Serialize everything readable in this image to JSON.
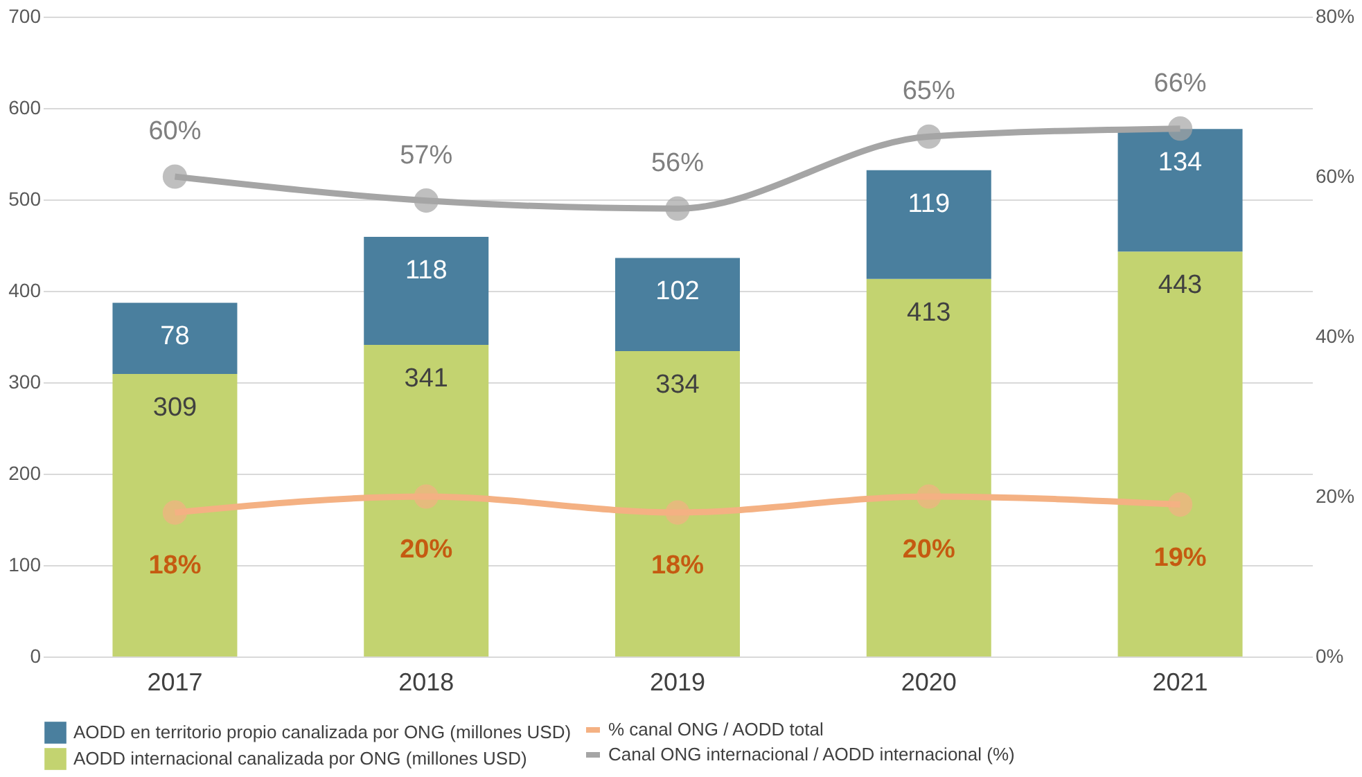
{
  "chart_data": {
    "type": "bar",
    "stacked": true,
    "categories": [
      "2017",
      "2018",
      "2019",
      "2020",
      "2021"
    ],
    "series": [
      {
        "name": "AODD internacional canalizada por ONG (millones USD)",
        "color": "#c3d370",
        "values": [
          309,
          341,
          334,
          413,
          443
        ]
      },
      {
        "name": "AODD en territorio propio canalizada por ONG (millones USD)",
        "color": "#4a7f9e",
        "values": [
          78,
          118,
          102,
          119,
          134
        ]
      },
      {
        "name": "% canal ONG / AODD total",
        "type": "line",
        "axis": "y2",
        "color": "#f4b183",
        "values": [
          18,
          20,
          18,
          20,
          19
        ],
        "value_labels": [
          "18%",
          "20%",
          "18%",
          "20%",
          "19%"
        ]
      },
      {
        "name": "Canal ONG internacional / AODD internacional (%)",
        "type": "line",
        "axis": "y2",
        "color": "#a5a5a5",
        "values": [
          60,
          57,
          56,
          65,
          66
        ],
        "value_labels": [
          "60%",
          "57%",
          "56%",
          "65%",
          "66%"
        ]
      }
    ],
    "ylim": [
      0,
      700
    ],
    "yticks": [
      0,
      100,
      200,
      300,
      400,
      500,
      600,
      700
    ],
    "y2lim": [
      0,
      80
    ],
    "y2ticks": [
      {
        "value": 0,
        "label": "0%"
      },
      {
        "value": 20,
        "label": "20%"
      },
      {
        "value": 40,
        "label": "40%"
      },
      {
        "value": 60,
        "label": "60%"
      },
      {
        "value": 80,
        "label": "80%"
      }
    ],
    "data_labels": true,
    "grid": "y",
    "legend": "bottom",
    "marker": "circle",
    "line_style": "solid"
  }
}
